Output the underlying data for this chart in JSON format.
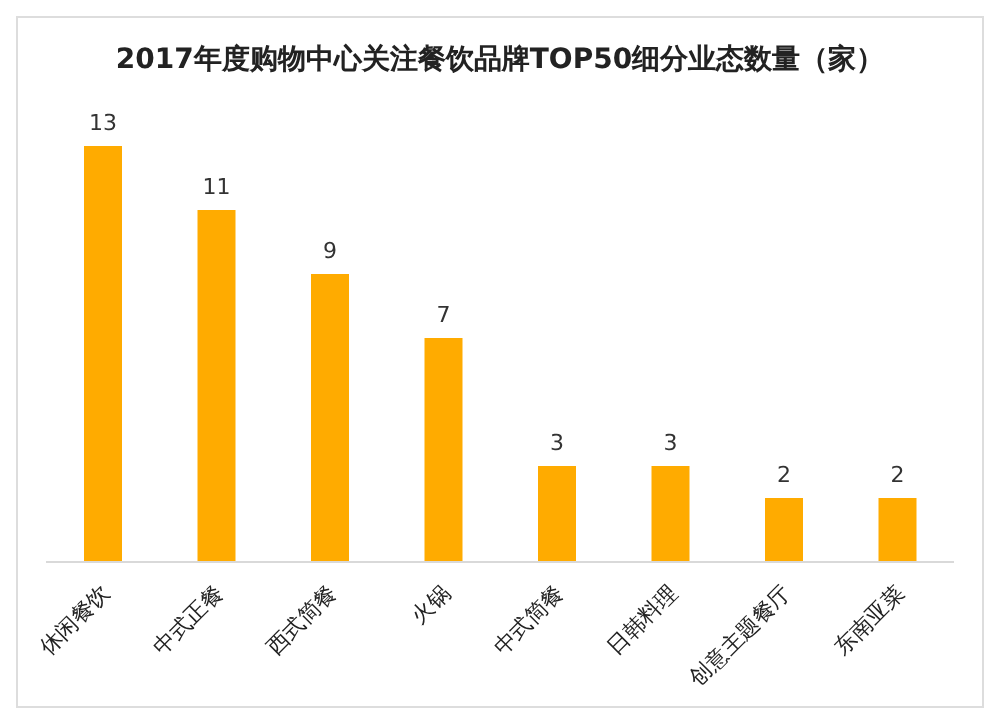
{
  "chart_data": {
    "type": "bar",
    "title": "2017年度购物中心关注餐饮品牌TOP50细分业态数量（家）",
    "categories": [
      "休闲餐饮",
      "中式正餐",
      "西式简餐",
      "火锅",
      "中式简餐",
      "日韩料理",
      "创意主题餐厅",
      "东南亚菜"
    ],
    "values": [
      13,
      11,
      9,
      7,
      3,
      3,
      2,
      2
    ],
    "color": "#ffab00",
    "data_labels": true,
    "tick_labels": "x"
  }
}
